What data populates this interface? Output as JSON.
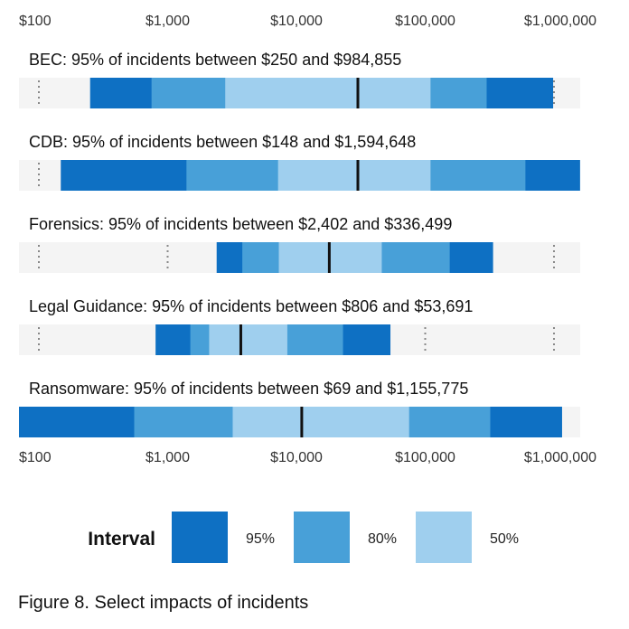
{
  "chart_data": {
    "type": "bar",
    "x_scale": "log",
    "xlim": [
      100,
      1000000
    ],
    "x_ticks": [
      100,
      1000,
      10000,
      100000,
      1000000
    ],
    "x_tick_labels": [
      "$100",
      "$1,000",
      "$10,000",
      "$100,000",
      "$1,000,000"
    ],
    "grid": true,
    "colors": {
      "95": "#0e70c3",
      "80": "#48a0d8",
      "50": "#9fcfee",
      "median": "#111111",
      "track": "#f4f4f4"
    },
    "rows": [
      {
        "title": "BEC: 95% of incidents between $250 and $984,855",
        "interval_95": [
          250,
          984855
        ],
        "interval_80": [
          750,
          300000
        ],
        "interval_50": [
          2800,
          110000
        ],
        "median": 30000
      },
      {
        "title": "CDB: 95% of incidents between $148 and $1,594,648",
        "interval_95": [
          148,
          1594648
        ],
        "interval_80": [
          1400,
          600000
        ],
        "interval_50": [
          7200,
          110000
        ],
        "median": 30000
      },
      {
        "title": "Forensics: 95% of incidents between $2,402 and $336,499",
        "interval_95": [
          2402,
          336499
        ],
        "interval_80": [
          3800,
          155000
        ],
        "interval_50": [
          7300,
          46000
        ],
        "median": 18000
      },
      {
        "title": "Legal Guidance: 95% of incidents between $806 and $53,691",
        "interval_95": [
          806,
          53691
        ],
        "interval_80": [
          1500,
          23000
        ],
        "interval_50": [
          2100,
          8500
        ],
        "median": 3700
      },
      {
        "title": "Ransomware: 95% of incidents between $69 and $1,155,775",
        "interval_95": [
          69,
          1155775
        ],
        "interval_80": [
          550,
          320000
        ],
        "interval_50": [
          3200,
          75000
        ],
        "median": 11000
      }
    ]
  },
  "legend": {
    "title": "Interval",
    "items": [
      {
        "label": "95%",
        "key": "95"
      },
      {
        "label": "80%",
        "key": "80"
      },
      {
        "label": "50%",
        "key": "50"
      }
    ]
  },
  "caption": "Figure 8. Select impacts of incidents"
}
